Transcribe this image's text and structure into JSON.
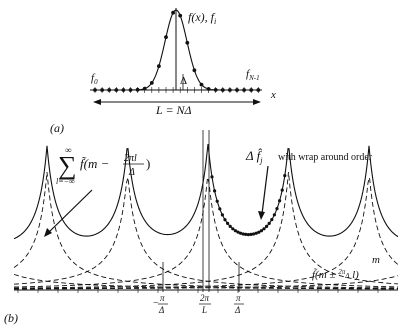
{
  "panel_a": {
    "label": "(a)",
    "curve_label": "f(x), f",
    "curve_label_sub": "i",
    "start_label": "f",
    "start_label_sub": "0",
    "end_label": "f",
    "end_label_sub": "N-1",
    "delta_label": "Δ",
    "axis_label": "x",
    "length_label": "L = NΔ"
  },
  "panel_b": {
    "label": "(b)",
    "sum_upper": "∞",
    "sum_lower": "l=−∞",
    "sum_symbol": "∑",
    "sum_term": "f̃(m − ",
    "sum_frac_num": "2πl",
    "sum_frac_den": "Δ",
    "sum_close": ")",
    "delta_f_label": "Δ f̂",
    "delta_f_sub": "j",
    "wrap_text": "with wrap around order",
    "m_label": "m",
    "shift_label": "f̃(m ± ",
    "shift_frac": "2π",
    "shift_frac_den": "Δ",
    "shift_tail": " l)",
    "tick_neg_num": "π",
    "tick_neg_sign": "−",
    "tick_neg_den": "Δ",
    "tick_mid_num": "2π",
    "tick_mid_den": "L",
    "tick_pos_num": "π",
    "tick_pos_den": "Δ"
  },
  "colors": {
    "ink": "#111111",
    "background": "#ffffff"
  }
}
